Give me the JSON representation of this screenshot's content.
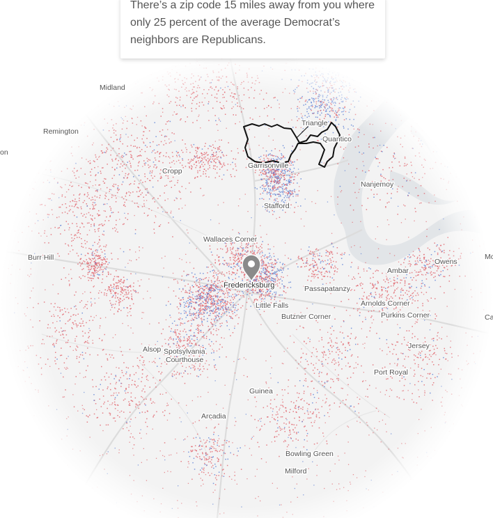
{
  "callout": {
    "text": "There’s a zip code 15 miles away from you where only 25 percent of the average Democrat’s neighbors are Republicans."
  },
  "map": {
    "colors": {
      "democrat_dot": "#5b7fd4",
      "republican_dot": "#e0626a",
      "water": "#e2e5e8",
      "land": "#f3f3f3",
      "road": "#dcdcdc",
      "highlight_outline": "#111111",
      "marker": "#8a8a8a"
    },
    "marker_icon": "location-pin-icon",
    "labels": {
      "midland": "Midland",
      "remington": "Remington",
      "triangle": "Triangle",
      "quantico": "Quantico",
      "crop": "Cropp",
      "garrisonville": "Garrisonville",
      "nanjemoy": "Nanjemoy",
      "stafford": "Stafford",
      "wallaces_corner": "Wallaces Corner",
      "burr_hill": "Burr Hill",
      "owens": "Owens",
      "ambar": "Ambar",
      "fredericksburg": "Fredericksburg",
      "passapatanzy": "Passapatanzy",
      "little_falls": "Little Falls",
      "arnolds_corner": "Arnolds Corner",
      "purkins_corner": "Purkins Corner",
      "butzner_corner": "Butzner Corner",
      "alsop": "Alsop",
      "spotsylvania": "Spotsylvania",
      "courthouse": "Courthouse",
      "jersey": "Jersey",
      "port_royal": "Port Royal",
      "guinea": "Guinea",
      "arcadia": "Arcadia",
      "bowling_green": "Bowling Green",
      "milford": "Milford",
      "edge_mo": "Mo",
      "edge_ca": "Ca",
      "edge_on": "on"
    }
  }
}
